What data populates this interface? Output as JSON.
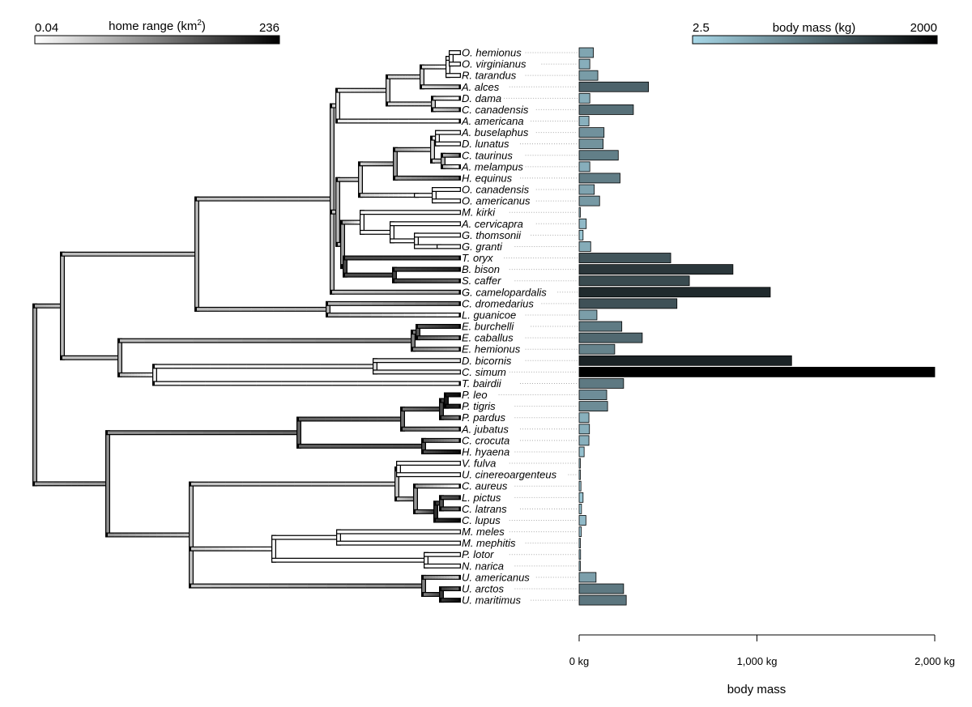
{
  "chart_data": {
    "type": "bar",
    "home_range_legend": {
      "min_label": "0.04",
      "max_label": "236",
      "title_main": "home range (km",
      "title_sup": "2",
      "title_close": ")"
    },
    "body_mass_legend": {
      "min_label": "2.5",
      "max_label": "2000",
      "title": "body mass (kg)",
      "min_value": 2.5,
      "max_value": 2000
    },
    "xaxis": {
      "label": "body mass",
      "range": [
        0,
        2000
      ],
      "ticks": [
        0,
        1000,
        2000
      ],
      "tick_labels": [
        "0 kg",
        "1,000 kg",
        "2,000 kg"
      ]
    },
    "colors": {
      "mass_low": "#a8d8e8",
      "mass_high": "#000000",
      "range_low": "#ffffff",
      "range_high": "#000000"
    },
    "species": [
      {
        "name": "O. hemionus",
        "mass": 80
      },
      {
        "name": "O. virginianus",
        "mass": 60
      },
      {
        "name": "R. tarandus",
        "mass": 105
      },
      {
        "name": "A. alces",
        "mass": 390
      },
      {
        "name": "D. dama",
        "mass": 60
      },
      {
        "name": "C. canadensis",
        "mass": 305
      },
      {
        "name": "A. americana",
        "mass": 55
      },
      {
        "name": "A. buselaphus",
        "mass": 140
      },
      {
        "name": "D. lunatus",
        "mass": 135
      },
      {
        "name": "C. taurinus",
        "mass": 220
      },
      {
        "name": "A. melampus",
        "mass": 60
      },
      {
        "name": "H. equinus",
        "mass": 230
      },
      {
        "name": "O. canadensis",
        "mass": 85
      },
      {
        "name": "O. americanus",
        "mass": 115
      },
      {
        "name": "M. kirki",
        "mass": 5
      },
      {
        "name": "A. cervicapra",
        "mass": 40
      },
      {
        "name": "G. thomsonii",
        "mass": 22
      },
      {
        "name": "G. granti",
        "mass": 65
      },
      {
        "name": "T. oryx",
        "mass": 515
      },
      {
        "name": "B. bison",
        "mass": 865
      },
      {
        "name": "S. caffer",
        "mass": 620
      },
      {
        "name": "G. camelopardalis",
        "mass": 1075
      },
      {
        "name": "C. dromedarius",
        "mass": 550
      },
      {
        "name": "L. guanicoe",
        "mass": 100
      },
      {
        "name": "E. burchelli",
        "mass": 240
      },
      {
        "name": "E. caballus",
        "mass": 355
      },
      {
        "name": "E. hemionus",
        "mass": 200
      },
      {
        "name": "D. bicornis",
        "mass": 1195
      },
      {
        "name": "C. simum",
        "mass": 2000
      },
      {
        "name": "T. bairdii",
        "mass": 250
      },
      {
        "name": "P. leo",
        "mass": 155
      },
      {
        "name": "P. tigris",
        "mass": 160
      },
      {
        "name": "P. pardus",
        "mass": 55
      },
      {
        "name": "A. jubatus",
        "mass": 58
      },
      {
        "name": "C. crocuta",
        "mass": 55
      },
      {
        "name": "H. hyaena",
        "mass": 28
      },
      {
        "name": "V. fulva",
        "mass": 5
      },
      {
        "name": "U. cinereoargenteus",
        "mass": 4
      },
      {
        "name": "C. aureus",
        "mass": 10
      },
      {
        "name": "L. pictus",
        "mass": 22
      },
      {
        "name": "C. latrans",
        "mass": 13
      },
      {
        "name": "C. lupus",
        "mass": 38
      },
      {
        "name": "M. meles",
        "mass": 12
      },
      {
        "name": "M. mephitis",
        "mass": 3
      },
      {
        "name": "P. lotor",
        "mass": 8
      },
      {
        "name": "N. narica",
        "mass": 5
      },
      {
        "name": "U. americanus",
        "mass": 95
      },
      {
        "name": "U. arctos",
        "mass": 250
      },
      {
        "name": "U. maritimus",
        "mass": 265
      }
    ]
  }
}
